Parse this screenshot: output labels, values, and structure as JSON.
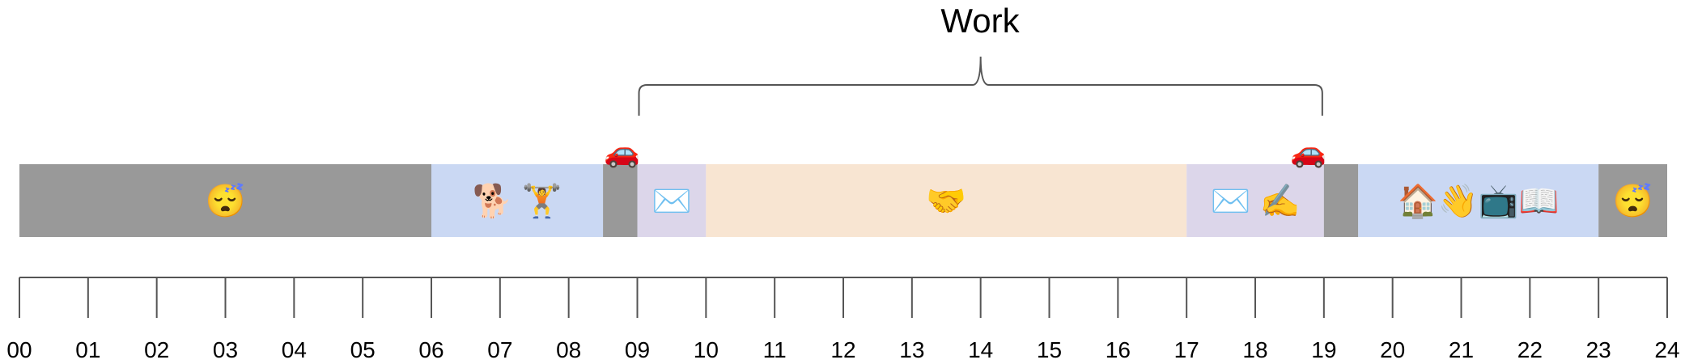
{
  "title": "Work",
  "colors": {
    "sleep": "#999999",
    "home": "#cad8f3",
    "commute": "#999999",
    "email": "#dcd6ea",
    "meetings": "#f8e5d2",
    "axis": "#555555",
    "bracket": "#555555"
  },
  "chart_data": {
    "type": "timeline",
    "x_range": [
      0,
      24
    ],
    "tick_labels": [
      "00",
      "01",
      "02",
      "03",
      "04",
      "05",
      "06",
      "07",
      "08",
      "09",
      "10",
      "11",
      "12",
      "13",
      "14",
      "15",
      "16",
      "17",
      "18",
      "19",
      "20",
      "21",
      "22",
      "23",
      "24"
    ],
    "segments": [
      {
        "start": 0,
        "end": 6,
        "kind": "sleep",
        "icons": [
          "sleeping-face-icon"
        ],
        "glyphs": "😴"
      },
      {
        "start": 6,
        "end": 8.5,
        "kind": "home",
        "icons": [
          "dog-icon",
          "weightlifter-icon"
        ],
        "glyphs": "🐕 🏋️"
      },
      {
        "start": 8.5,
        "end": 9,
        "kind": "commute",
        "icons": [],
        "glyphs": ""
      },
      {
        "start": 9,
        "end": 10,
        "kind": "email",
        "icons": [
          "envelope-icon"
        ],
        "glyphs": "✉️"
      },
      {
        "start": 10,
        "end": 17,
        "kind": "meetings",
        "icons": [
          "handshake-icon"
        ],
        "glyphs": "🤝"
      },
      {
        "start": 17,
        "end": 19,
        "kind": "email",
        "icons": [
          "envelope-icon",
          "writing-hand-icon"
        ],
        "glyphs": "✉️ ✍️"
      },
      {
        "start": 19,
        "end": 19.5,
        "kind": "commute",
        "icons": [],
        "glyphs": ""
      },
      {
        "start": 19.5,
        "end": 23,
        "kind": "home",
        "icons": [
          "house-icon",
          "waving-hand-icon",
          "television-icon",
          "book-icon"
        ],
        "glyphs": "🏠👋📺📖"
      },
      {
        "start": 23,
        "end": 24,
        "kind": "sleep",
        "icons": [
          "sleeping-face-icon"
        ],
        "glyphs": "😴"
      }
    ],
    "commute_markers": [
      {
        "x": 9,
        "icon": "car-icon",
        "glyph": "🚗"
      },
      {
        "x": 19,
        "icon": "car-icon",
        "glyph": "🚗"
      }
    ],
    "bracket": {
      "start": 9,
      "end": 19,
      "label": "Work"
    }
  }
}
